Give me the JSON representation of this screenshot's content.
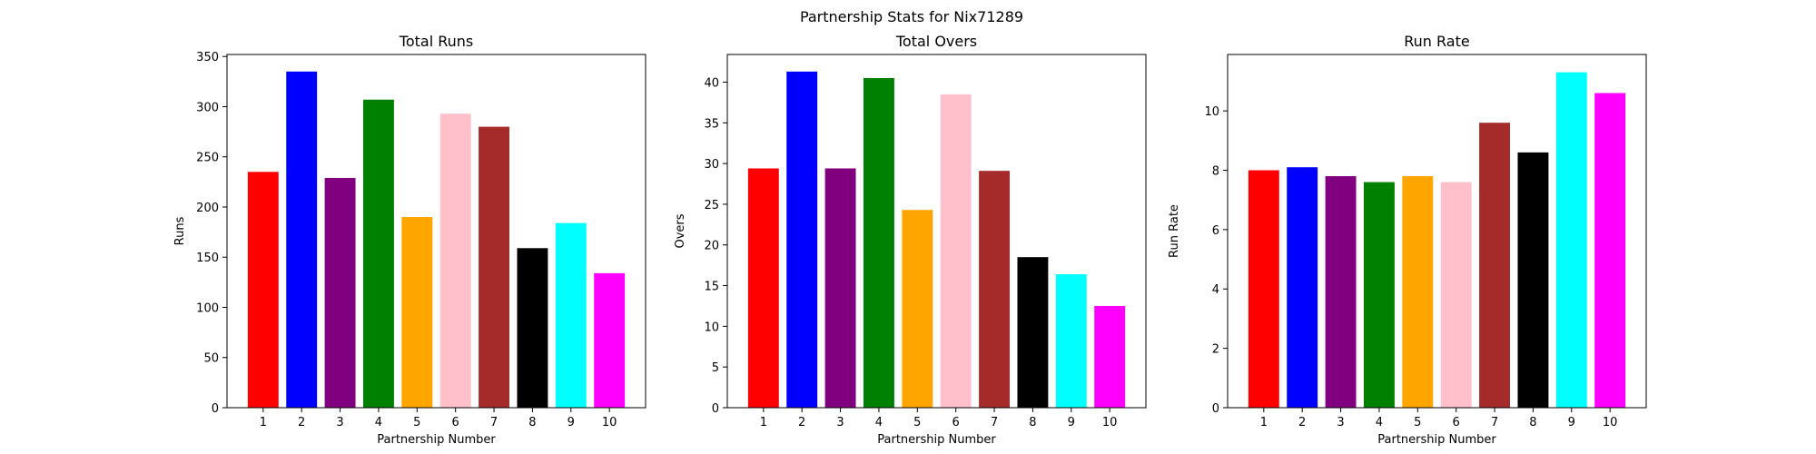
{
  "figure": {
    "suptitle": "Partnership Stats for Nix71289"
  },
  "chart_data": [
    {
      "type": "bar",
      "title": "Total Runs",
      "xlabel": "Partnership Number",
      "ylabel": "Runs",
      "categories": [
        "1",
        "2",
        "3",
        "4",
        "5",
        "6",
        "7",
        "8",
        "9",
        "10"
      ],
      "values": [
        235,
        335,
        229,
        307,
        190,
        293,
        280,
        159,
        184,
        134
      ],
      "colors": [
        "#ff0000",
        "#0000ff",
        "#800080",
        "#008000",
        "#ffa500",
        "#ffc0cb",
        "#a52a2a",
        "#000000",
        "#00ffff",
        "#ff00ff"
      ],
      "ylim": [
        0,
        352
      ],
      "yticks": [
        "0",
        "50",
        "100",
        "150",
        "200",
        "250",
        "300",
        "350"
      ],
      "yticks_values": [
        0,
        50,
        100,
        150,
        200,
        250,
        300,
        350
      ]
    },
    {
      "type": "bar",
      "title": "Total Overs",
      "xlabel": "Partnership Number",
      "ylabel": "Overs",
      "categories": [
        "1",
        "2",
        "3",
        "4",
        "5",
        "6",
        "7",
        "8",
        "9",
        "10"
      ],
      "values": [
        29.4,
        41.3,
        29.4,
        40.5,
        24.3,
        38.5,
        29.1,
        18.5,
        16.4,
        12.5
      ],
      "colors": [
        "#ff0000",
        "#0000ff",
        "#800080",
        "#008000",
        "#ffa500",
        "#ffc0cb",
        "#a52a2a",
        "#000000",
        "#00ffff",
        "#ff00ff"
      ],
      "ylim": [
        0,
        43.4
      ],
      "yticks": [
        "0",
        "5",
        "10",
        "15",
        "20",
        "25",
        "30",
        "35",
        "40"
      ],
      "yticks_values": [
        0,
        5,
        10,
        15,
        20,
        25,
        30,
        35,
        40
      ]
    },
    {
      "type": "bar",
      "title": "Run Rate",
      "xlabel": "Partnership Number",
      "ylabel": "Run Rate",
      "categories": [
        "1",
        "2",
        "3",
        "4",
        "5",
        "6",
        "7",
        "8",
        "9",
        "10"
      ],
      "values": [
        8.0,
        8.1,
        7.8,
        7.6,
        7.8,
        7.6,
        9.6,
        8.6,
        11.3,
        10.6
      ],
      "colors": [
        "#ff0000",
        "#0000ff",
        "#800080",
        "#008000",
        "#ffa500",
        "#ffc0cb",
        "#a52a2a",
        "#000000",
        "#00ffff",
        "#ff00ff"
      ],
      "ylim": [
        0,
        11.9
      ],
      "yticks": [
        "0",
        "2",
        "4",
        "6",
        "8",
        "10"
      ],
      "yticks_values": [
        0,
        2,
        4,
        6,
        8,
        10
      ]
    }
  ]
}
